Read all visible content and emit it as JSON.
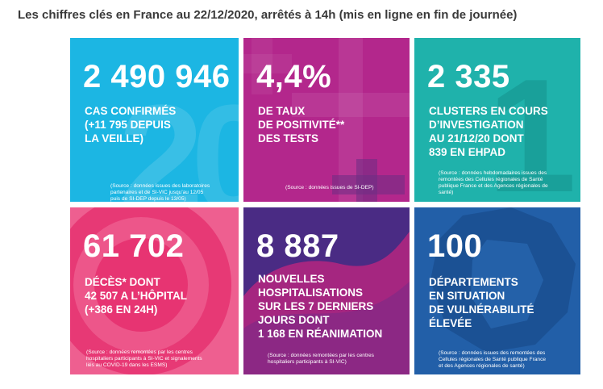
{
  "header": {
    "title": "Les chiffres clés en France au 22/12/2020, arrêtés à 14h (mis en ligne en fin de journée)"
  },
  "tiles": [
    {
      "value": "2 490 946",
      "label": "CAS CONFIRMÉS\n(+11 795 DEPUIS\nLA VEILLE)",
      "source": "(Source : données issues des laboratoires\npartenaires et de SI-VIC jusqu'au 12/05\npuis de SI-DEP depuis le 13/05)",
      "color": "#1cb6e3"
    },
    {
      "value": "4,4%",
      "label": "DE TAUX\nDE POSITIVITÉ**\nDES TESTS",
      "source": "(Source : données issues de SI-DEP)",
      "color": "#b3278c"
    },
    {
      "value": "2 335",
      "label": "CLUSTERS EN COURS\nD’INVESTIGATION\nAU 21/12/20 DONT\n839 EN EHPAD",
      "source": "(Source : données hebdomadaires issues des\nremontées des Cellules régionales de Santé\npublique France et des Agences régionales de\nsanté)",
      "color": "#1fb2ab"
    },
    {
      "value": "61 702",
      "label": "DÉCÈS* DONT\n42 507 A L’HÔPITAL\n(+386 EN 24H)",
      "source": "(Source : données remontées par les centres\nhospitaliers participants à SI-VIC et signalements\nliés au COVID-19 dans les ESMS)",
      "color": "#ee5f90"
    },
    {
      "value": "8 887",
      "label": "NOUVELLES\nHOSPITALISATIONS\nSUR LES 7 DERNIERS\nJOURS DONT\n1 168 EN RÉANIMATION",
      "source": "(Source : données remontées par les centres\nhospitaliers participants à SI-VIC)",
      "color": "#4a2b84"
    },
    {
      "value": "100",
      "label": "DÉPARTEMENTS\nEN SITUATION\nDE VULNÉRABILITÉ\nÉLEVÉE",
      "source": "(Source : données issues des remontées des\nCellules régionales de Santé publique France\net des Agences régionales de santé)",
      "color": "#225fa8"
    }
  ]
}
